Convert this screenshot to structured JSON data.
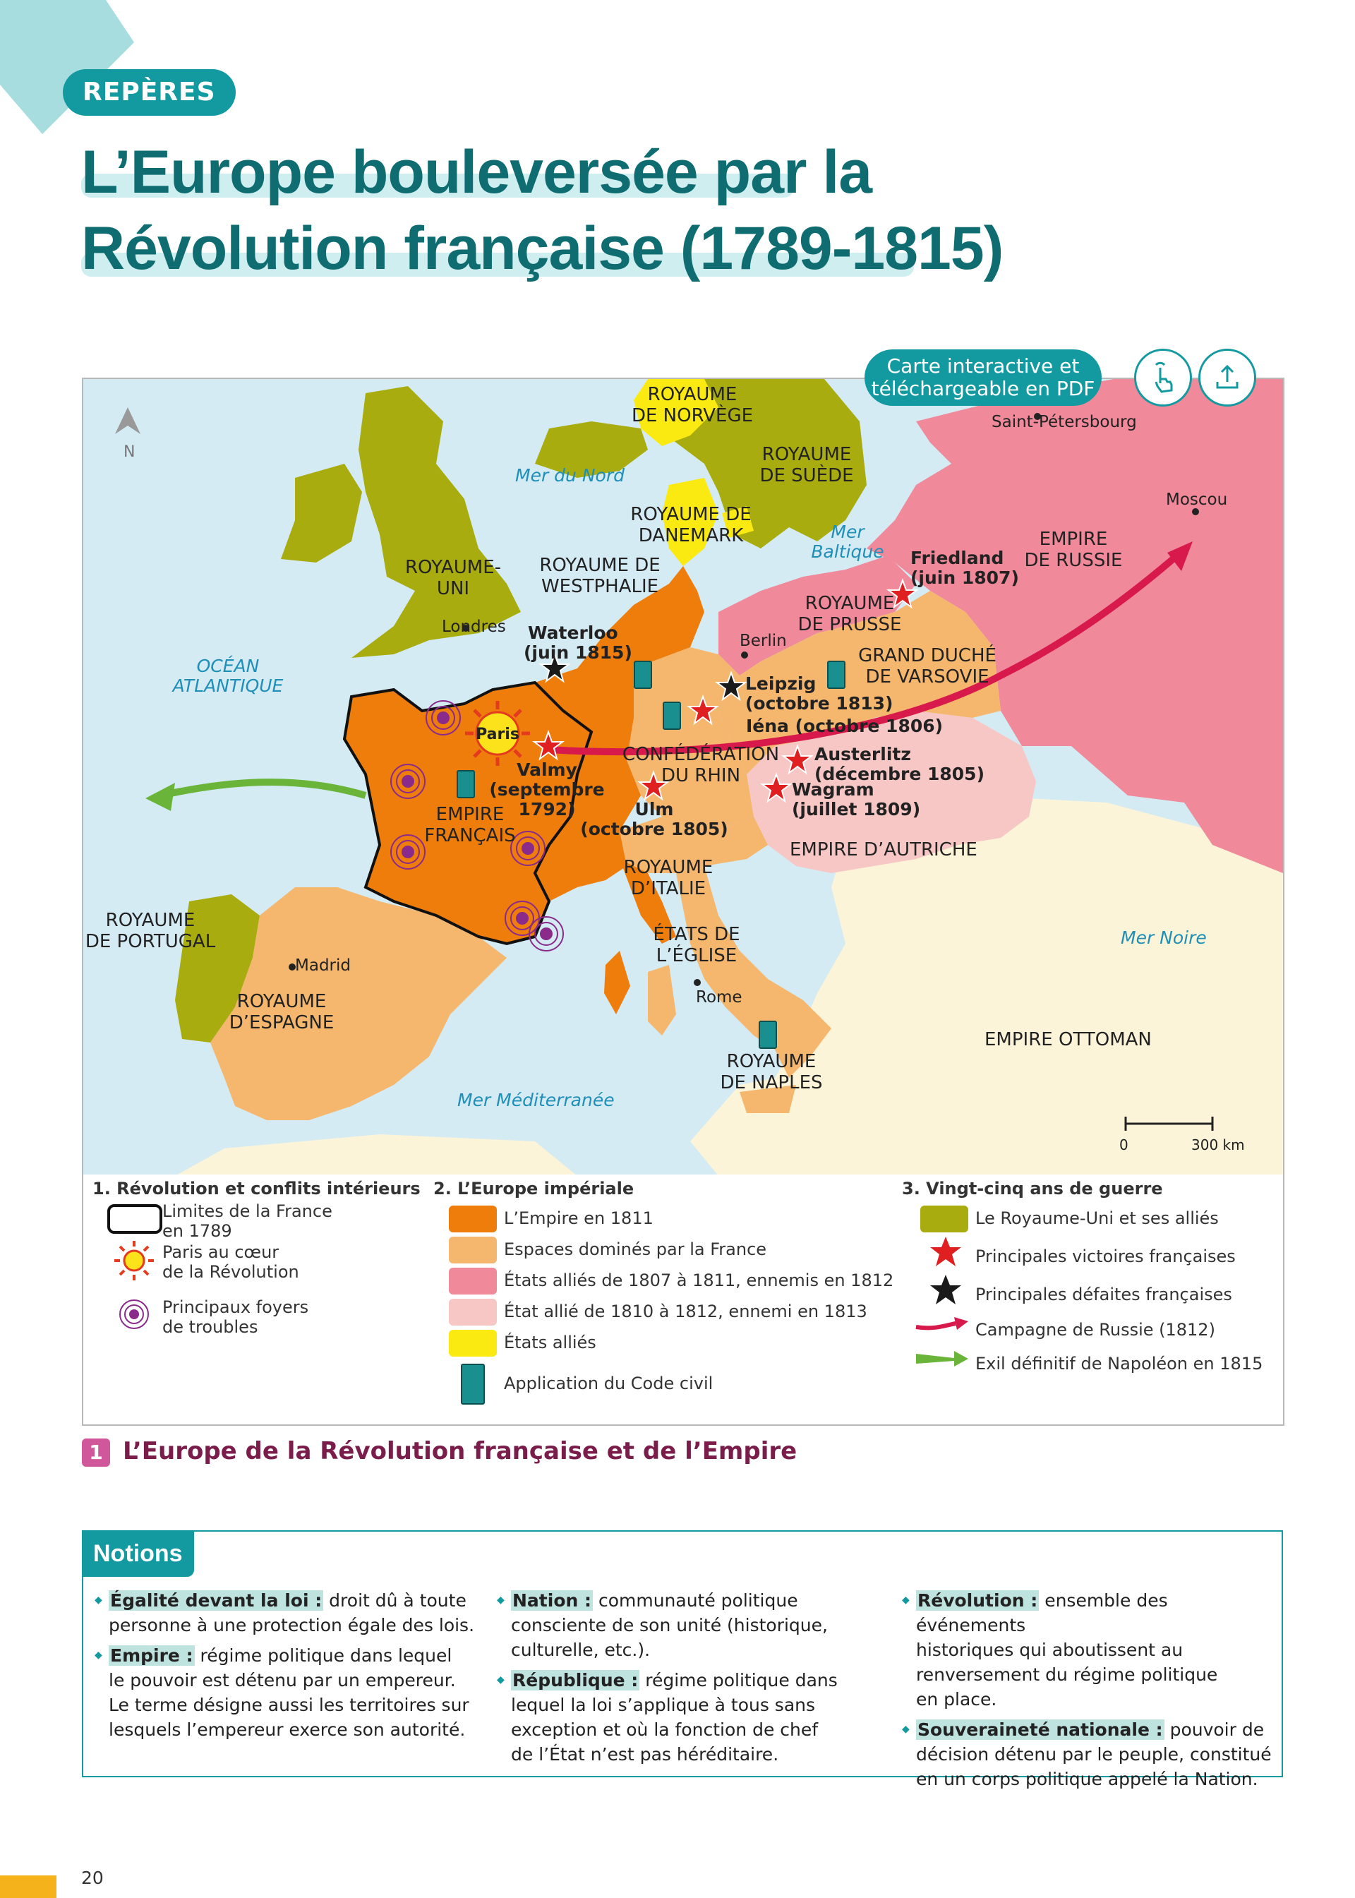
{
  "header": {
    "tag": "REPÈRES",
    "title_line1": "L’Europe bouleversée par la",
    "title_line2": "Révolution française (1789-1815)"
  },
  "map": {
    "north_label": "N",
    "interactive_line1": "Carte interactive et",
    "interactive_line2": "téléchargeable en PDF",
    "interactive_icon": "touch-hand-icon",
    "download_icon": "download-icon",
    "scale": {
      "start": "0",
      "end": "300 km"
    },
    "regions": {
      "norvege": [
        "ROYAUME",
        "DE NORVÈGE"
      ],
      "suede": [
        "ROYAUME",
        "DE SUÈDE"
      ],
      "danemark": [
        "ROYAUME DE",
        "DANEMARK"
      ],
      "royaume_uni": [
        "ROYAUME-",
        "UNI"
      ],
      "westphalie": [
        "ROYAUME DE",
        "WESTPHALIE"
      ],
      "prusse": [
        "ROYAUME",
        "DE PRUSSE"
      ],
      "varsovie": [
        "GRAND DUCHÉ",
        "DE VARSOVIE"
      ],
      "russie": [
        "EMPIRE",
        "DE RUSSIE"
      ],
      "confederation": [
        "CONFÉDÉRATION",
        "DU RHIN"
      ],
      "empire_francais": [
        "EMPIRE",
        "FRANÇAIS"
      ],
      "autriche": "EMPIRE D’AUTRICHE",
      "italie": [
        "ROYAUME",
        "D’ITALIE"
      ],
      "eglise": [
        "ÉTATS DE",
        "L’ÉGLISE"
      ],
      "naples": [
        "ROYAUME",
        "DE NAPLES"
      ],
      "portugal": [
        "ROYAUME",
        "DE PORTUGAL"
      ],
      "espagne": [
        "ROYAUME",
        "D’ESPAGNE"
      ],
      "ottoman": "EMPIRE OTTOMAN"
    },
    "seas": {
      "nord": "Mer du Nord",
      "baltique": [
        "Mer",
        "Baltique"
      ],
      "atlantique": [
        "OCÉAN",
        "ATLANTIQUE"
      ],
      "noire": "Mer Noire",
      "mediterranee": "Mer Méditerranée"
    },
    "cities": {
      "londres": "Londres",
      "paris": "Paris",
      "berlin": "Berlin",
      "madrid": "Madrid",
      "rome": "Rome",
      "moscou": "Moscou",
      "saint_petersbourg": "Saint-Pétersbourg"
    },
    "battles": {
      "waterloo": [
        "Waterloo",
        "(juin 1815)"
      ],
      "friedland": [
        "Friedland",
        "(juin 1807)"
      ],
      "leipzig": [
        "Leipzig",
        "(octobre 1813)"
      ],
      "iena": "Iéna (octobre 1806)",
      "valmy": [
        "Valmy",
        "(septembre",
        "1792)"
      ],
      "austerlitz": [
        "Austerlitz",
        "(décembre 1805)"
      ],
      "wagram": [
        "Wagram",
        "(juillet 1809)"
      ],
      "ulm": [
        "Ulm",
        "(octobre 1805)"
      ]
    },
    "colors": {
      "sea": "#d4ebf4",
      "empire_1811": "#ee7d0c",
      "dominated": "#f5b66e",
      "allied_1807_1811": "#f0899a",
      "allied_1810_1812": "#f7c7c5",
      "allied_states": "#fbea12",
      "uk_allies": "#a9ac0f",
      "other_land": "#fbf4d8",
      "russia_campaign": "#d7194b",
      "exile": "#6ab539",
      "code_civil": "#1a8f8f"
    }
  },
  "legend": {
    "col1": {
      "heading": "1. Révolution et conflits intérieurs",
      "items": [
        {
          "label": [
            "Limites de la France",
            "en 1789"
          ],
          "icon": "border-outline-icon"
        },
        {
          "label": [
            "Paris au cœur",
            "de la Révolution"
          ],
          "icon": "sun-icon"
        },
        {
          "label": [
            "Principaux foyers",
            "de troubles"
          ],
          "icon": "trouble-rings-icon"
        }
      ]
    },
    "col2": {
      "heading": "2. L’Europe impériale",
      "items": [
        "L’Empire en 1811",
        "Espaces dominés par la France",
        "États alliés de 1807 à 1811, ennemis en 1812",
        "État allié de 1810 à 1812, ennemi en 1813",
        "États alliés",
        "Application du Code civil"
      ]
    },
    "col3": {
      "heading": "3. Vingt-cinq ans de guerre",
      "items": [
        "Le Royaume-Uni et ses alliés",
        "Principales victoires françaises",
        "Principales défaites françaises",
        "Campagne de Russie (1812)",
        "Exil définitif de Napoléon en 1815"
      ]
    }
  },
  "caption": {
    "number": "1",
    "text": "L’Europe de la Révolution française et de l’Empire"
  },
  "notions": {
    "title": "Notions",
    "col1": [
      {
        "term": "Égalité devant la loi :",
        "lines": [
          " droit dû à toute",
          "personne à une protection égale des lois."
        ]
      },
      {
        "term": "Empire :",
        "lines": [
          " régime politique dans lequel",
          "le pouvoir est détenu par un empereur.",
          "Le terme désigne aussi les territoires sur",
          "lesquels l’empereur exerce son autorité."
        ]
      }
    ],
    "col2": [
      {
        "term": "Nation :",
        "lines": [
          " communauté politique",
          "consciente de son unité (historique,",
          "culturelle, etc.)."
        ]
      },
      {
        "term": "République :",
        "lines": [
          " régime politique dans",
          "lequel la loi s’applique à tous sans",
          "exception et où la fonction de chef",
          "de l’État n’est pas héréditaire."
        ]
      }
    ],
    "col3": [
      {
        "term": "Révolution :",
        "lines": [
          " ensemble des événements",
          "historiques qui aboutissent au",
          "renversement du régime politique",
          "en place."
        ]
      },
      {
        "term": "Souveraineté nationale :",
        "lines": [
          " pouvoir de",
          "décision détenu par le peuple, constitué",
          "en un corps politique appelé la Nation."
        ]
      }
    ]
  },
  "footer": {
    "page_number": "20"
  }
}
